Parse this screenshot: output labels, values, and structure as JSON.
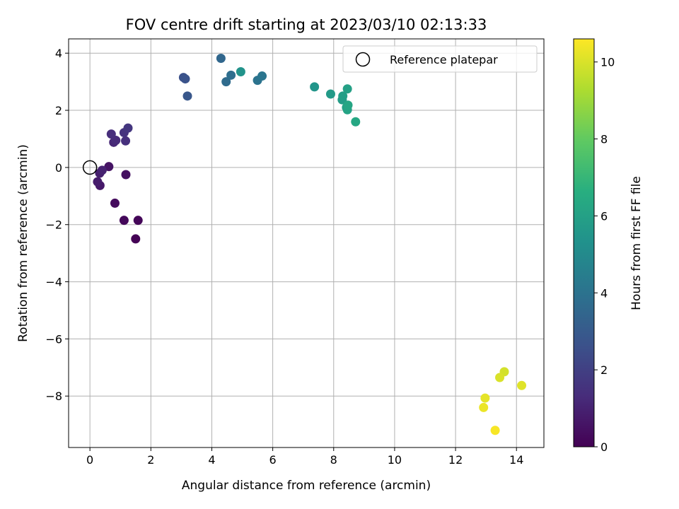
{
  "chart_data": {
    "type": "scatter",
    "title": "FOV centre drift starting at 2023/03/10 02:13:33",
    "xlabel": "Angular distance from reference (arcmin)",
    "ylabel": "Rotation from reference (arcmin)",
    "xlim": [
      -0.7,
      14.9
    ],
    "ylim": [
      -9.8,
      4.5
    ],
    "xticks": [
      0,
      2,
      4,
      6,
      8,
      10,
      12,
      14
    ],
    "yticks": [
      -8,
      -6,
      -4,
      -2,
      0,
      2,
      4
    ],
    "x_tick_labels": [
      "0",
      "2",
      "4",
      "6",
      "8",
      "10",
      "12",
      "14"
    ],
    "y_tick_labels": [
      "−8",
      "−6",
      "−4",
      "−2",
      "0",
      "2",
      "4"
    ],
    "grid": true,
    "legend": {
      "position": "top-right",
      "entries": [
        {
          "label": "Reference platepar",
          "marker": "open-circle",
          "x": 0,
          "y": 0
        }
      ]
    },
    "colorbar": {
      "label": "Hours from first FF file",
      "range": [
        0,
        10.6
      ],
      "ticks": [
        0,
        2,
        4,
        6,
        8,
        10
      ],
      "tick_labels": [
        "0",
        "2",
        "4",
        "6",
        "8",
        "10"
      ],
      "colormap": "viridis"
    },
    "points": [
      {
        "x": 1.5,
        "y": -2.5,
        "c": 0.05
      },
      {
        "x": 1.58,
        "y": -1.85,
        "c": 0.15
      },
      {
        "x": 1.12,
        "y": -1.85,
        "c": 0.2
      },
      {
        "x": 0.82,
        "y": -1.25,
        "c": 0.3
      },
      {
        "x": 1.18,
        "y": -0.25,
        "c": 0.45
      },
      {
        "x": 0.62,
        "y": 0.03,
        "c": 0.55
      },
      {
        "x": 0.33,
        "y": -0.63,
        "c": 0.7
      },
      {
        "x": 0.25,
        "y": -0.5,
        "c": 0.8
      },
      {
        "x": 0.32,
        "y": -0.2,
        "c": 0.9
      },
      {
        "x": 0.4,
        "y": -0.1,
        "c": 1.0
      },
      {
        "x": 0.78,
        "y": 0.88,
        "c": 1.15
      },
      {
        "x": 0.85,
        "y": 0.95,
        "c": 1.25
      },
      {
        "x": 0.7,
        "y": 1.17,
        "c": 1.35
      },
      {
        "x": 1.17,
        "y": 0.93,
        "c": 1.45
      },
      {
        "x": 1.12,
        "y": 1.22,
        "c": 1.55
      },
      {
        "x": 1.25,
        "y": 1.38,
        "c": 1.65
      },
      {
        "x": 3.07,
        "y": 3.15,
        "c": 2.6
      },
      {
        "x": 3.13,
        "y": 3.1,
        "c": 2.7
      },
      {
        "x": 3.2,
        "y": 2.5,
        "c": 2.85
      },
      {
        "x": 4.3,
        "y": 3.82,
        "c": 3.5
      },
      {
        "x": 4.47,
        "y": 3.0,
        "c": 3.7
      },
      {
        "x": 4.63,
        "y": 3.23,
        "c": 3.8
      },
      {
        "x": 5.5,
        "y": 3.05,
        "c": 4.0
      },
      {
        "x": 5.65,
        "y": 3.2,
        "c": 4.1
      },
      {
        "x": 4.95,
        "y": 3.35,
        "c": 5.4
      },
      {
        "x": 7.37,
        "y": 2.82,
        "c": 5.5
      },
      {
        "x": 7.9,
        "y": 2.57,
        "c": 5.7
      },
      {
        "x": 8.28,
        "y": 2.37,
        "c": 5.8
      },
      {
        "x": 8.3,
        "y": 2.5,
        "c": 5.9
      },
      {
        "x": 8.45,
        "y": 2.75,
        "c": 6.0
      },
      {
        "x": 8.42,
        "y": 2.1,
        "c": 6.05
      },
      {
        "x": 8.45,
        "y": 2.02,
        "c": 6.1
      },
      {
        "x": 8.47,
        "y": 2.18,
        "c": 6.2
      },
      {
        "x": 8.72,
        "y": 1.6,
        "c": 6.3
      },
      {
        "x": 13.6,
        "y": -7.15,
        "c": 9.9
      },
      {
        "x": 13.45,
        "y": -7.35,
        "c": 10.0
      },
      {
        "x": 14.17,
        "y": -7.63,
        "c": 10.1
      },
      {
        "x": 12.97,
        "y": -8.07,
        "c": 10.2
      },
      {
        "x": 12.92,
        "y": -8.4,
        "c": 10.3
      },
      {
        "x": 13.3,
        "y": -9.2,
        "c": 10.5
      }
    ]
  }
}
